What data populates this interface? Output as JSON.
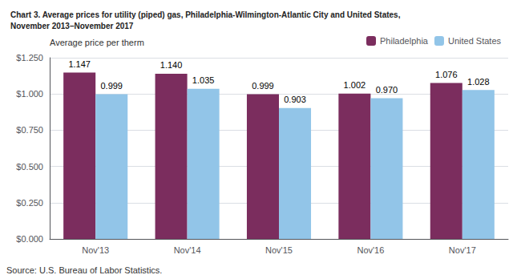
{
  "chart_data": {
    "type": "bar",
    "title": "Chart 3. Average prices for utility (piped) gas, Philadelphia-Wilmington-Atlantic City and United States,\nNovember 2013–November 2017",
    "ylabel": "Average price per therm",
    "annotations": [
      "Source: U.S. Bureau of Labor Statistics."
    ],
    "categories": [
      "Nov'13",
      "Nov'14",
      "Nov'15",
      "Nov'16",
      "Nov'17"
    ],
    "series": [
      {
        "name": "Philadelphia",
        "color": "#7B2D5E",
        "values": [
          1.147,
          1.14,
          0.999,
          1.002,
          1.076
        ],
        "value_labels": [
          "1.147",
          "1.140",
          "0.999",
          "1.002",
          "1.076"
        ]
      },
      {
        "name": "United States",
        "color": "#92C5E8",
        "values": [
          0.999,
          1.035,
          0.903,
          0.97,
          1.028
        ],
        "value_labels": [
          "0.999",
          "1.035",
          "0.903",
          "0.970",
          "1.028"
        ]
      }
    ],
    "ylim": [
      0,
      1.25
    ],
    "yticks": [
      {
        "value": 0,
        "label": "$0.000"
      },
      {
        "value": 0.25,
        "label": "$0.250"
      },
      {
        "value": 0.5,
        "label": "$0.500"
      },
      {
        "value": 0.75,
        "label": "$0.750"
      },
      {
        "value": 1,
        "label": "$1.000"
      },
      {
        "value": 1.25,
        "label": "$1.250"
      }
    ],
    "grid": true,
    "legend": "top",
    "data_labels": true
  }
}
